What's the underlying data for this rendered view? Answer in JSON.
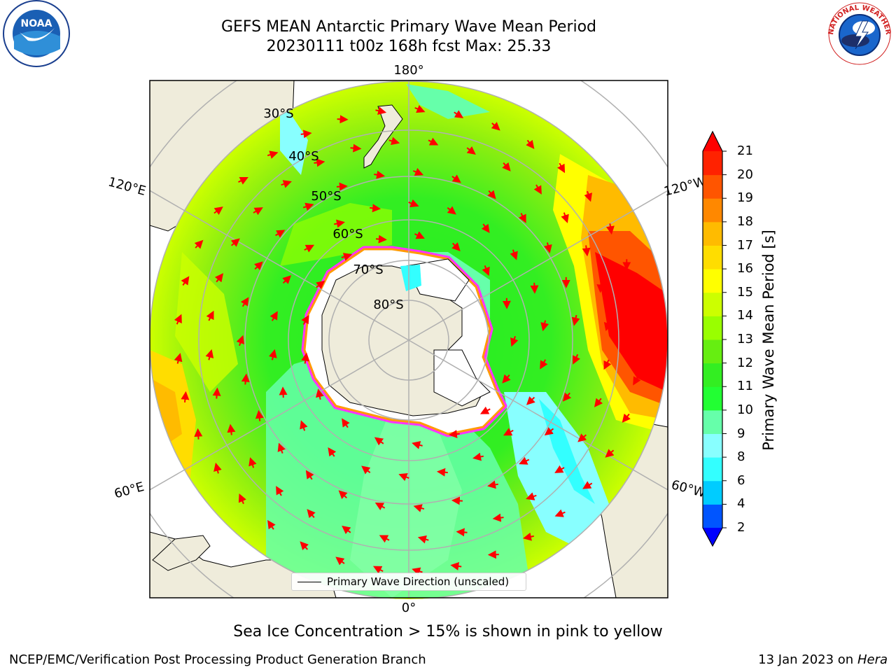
{
  "header": {
    "title_line1": "GEFS MEAN Antarctic Primary Wave Mean Period",
    "title_line2": "20230111 t00z 168h fcst   Max: 25.33"
  },
  "logos": {
    "left": {
      "icon": "noaa-logo",
      "text": "NOAA"
    },
    "right": {
      "icon": "nws-logo",
      "text": "NATIONAL WEATHER SERVICE"
    }
  },
  "map": {
    "projection": "south-polar-stereographic",
    "longitude_labels": {
      "top": "180°",
      "bottom": "0°",
      "left_upper": "120°E",
      "left_lower": "60°E",
      "right_upper": "120°W",
      "right_lower": "60°W"
    },
    "latitude_labels": [
      "30°S",
      "40°S",
      "50°S",
      "60°S",
      "70°S",
      "80°S"
    ],
    "legend": {
      "label": "Primary Wave Direction (unscaled)"
    },
    "arrow_color": "#ff0000",
    "land_color": "#efecdb",
    "ice_colors": [
      "#ff33ff",
      "#ff9900",
      "#ffffff"
    ]
  },
  "colorbar": {
    "label": "Primary Wave Mean Period [s]",
    "ticks": [
      "2",
      "4",
      "6",
      "8",
      "9",
      "10",
      "11",
      "12",
      "13",
      "14",
      "15",
      "16",
      "17",
      "18",
      "19",
      "20",
      "21"
    ],
    "colors": [
      "#0055ff",
      "#00ccff",
      "#33ffff",
      "#88ffff",
      "#66ffaa",
      "#22ff33",
      "#33ee22",
      "#66ee11",
      "#99ff00",
      "#ccff00",
      "#ffff00",
      "#ffdd00",
      "#ffbb00",
      "#ff8800",
      "#ff5500",
      "#ff2200"
    ],
    "under_color": "#0000ff",
    "over_color": "#ff0000"
  },
  "chart_data": {
    "type": "heatmap",
    "title": "GEFS MEAN Antarctic Primary Wave Mean Period",
    "subtitle": "20230111 t00z 168h fcst   Max: 25.33",
    "max": 25.33,
    "zlabel": "Primary Wave Mean Period [s]",
    "levels": [
      2,
      4,
      6,
      8,
      9,
      10,
      11,
      12,
      13,
      14,
      15,
      16,
      17,
      18,
      19,
      20,
      21
    ],
    "latitudes": [
      "30°S",
      "40°S",
      "50°S",
      "60°S",
      "70°S",
      "80°S"
    ],
    "longitudes": [
      "180°",
      "120°W",
      "60°W",
      "0°",
      "60°E",
      "120°E"
    ]
  },
  "footer": {
    "note": "Sea Ice Concentration > 15% is shown in pink to yellow",
    "left": "NCEP/EMC/Verification Post Processing Product Generation Branch",
    "date": "13 Jan 2023 on",
    "host": "Hera"
  }
}
